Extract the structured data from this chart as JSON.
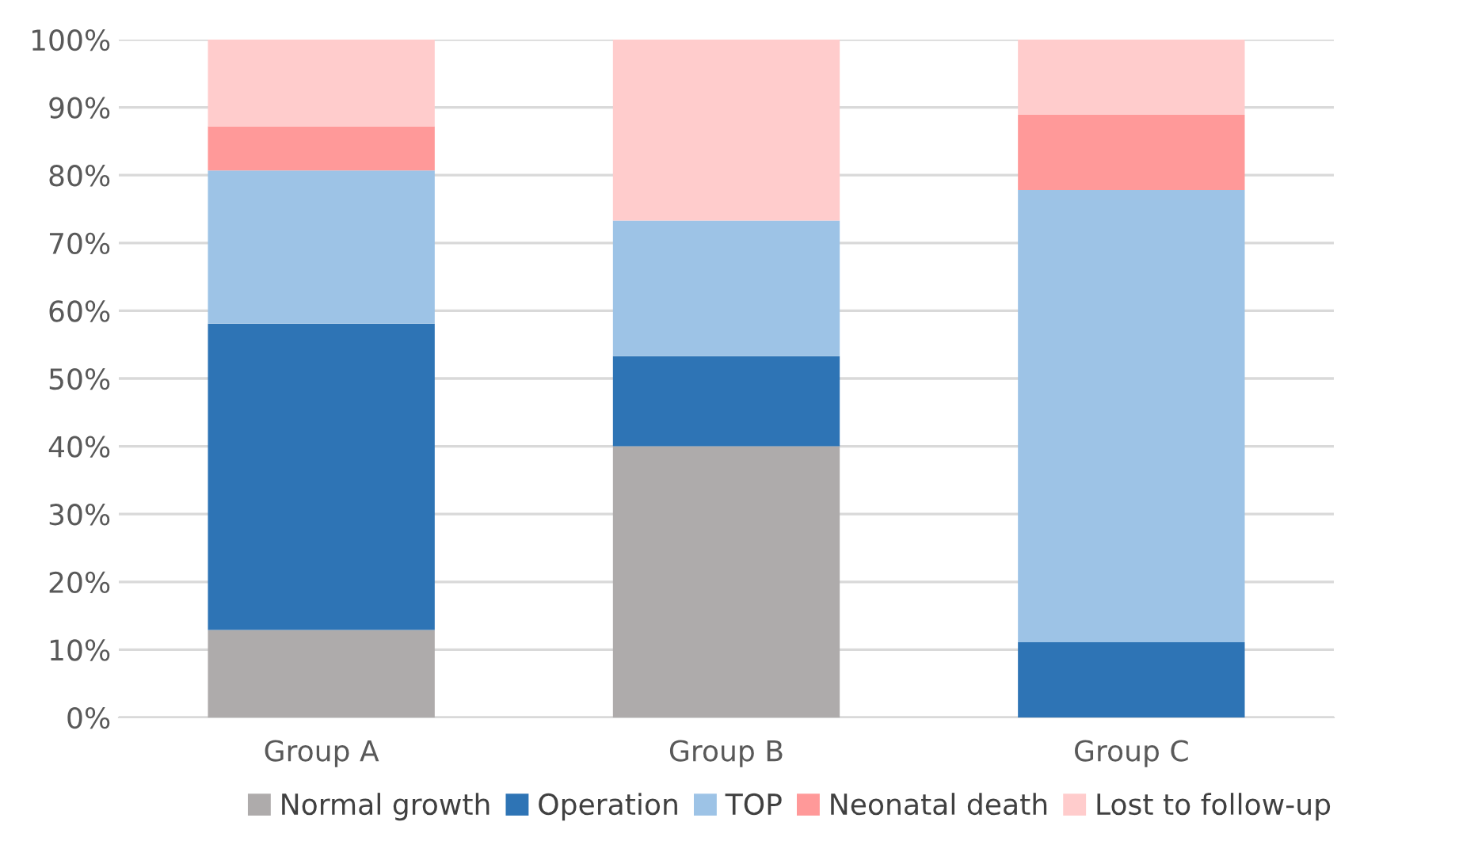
{
  "chart_data": {
    "type": "bar",
    "stacked": true,
    "categories": [
      "Group A",
      "Group B",
      "Group C"
    ],
    "series": [
      {
        "name": "Normal growth",
        "color": "#aeabab",
        "values": [
          12.9,
          40.0,
          0
        ]
      },
      {
        "name": "Operation",
        "color": "#2e74b5",
        "values": [
          45.2,
          13.3,
          11.1
        ]
      },
      {
        "name": "TOP",
        "color": "#9dc3e6",
        "values": [
          22.6,
          20.0,
          66.7
        ]
      },
      {
        "name": "Neonatal death",
        "color": "#ff9999",
        "values": [
          6.5,
          0,
          11.1
        ]
      },
      {
        "name": "Lost to follow-up",
        "color": "#ffcccc",
        "values": [
          12.9,
          26.7,
          11.1
        ]
      }
    ],
    "ylim": [
      0,
      100
    ],
    "yticks": [
      {
        "value": 0,
        "label": "0%"
      },
      {
        "value": 10,
        "label": "10%"
      },
      {
        "value": 20,
        "label": "20%"
      },
      {
        "value": 30,
        "label": "30%"
      },
      {
        "value": 40,
        "label": "40%"
      },
      {
        "value": 50,
        "label": "50%"
      },
      {
        "value": 60,
        "label": "60%"
      },
      {
        "value": 70,
        "label": "70%"
      },
      {
        "value": 80,
        "label": "80%"
      },
      {
        "value": 90,
        "label": "90%"
      },
      {
        "value": 100,
        "label": "100%"
      }
    ],
    "grid": "y",
    "legend": "bottom"
  }
}
